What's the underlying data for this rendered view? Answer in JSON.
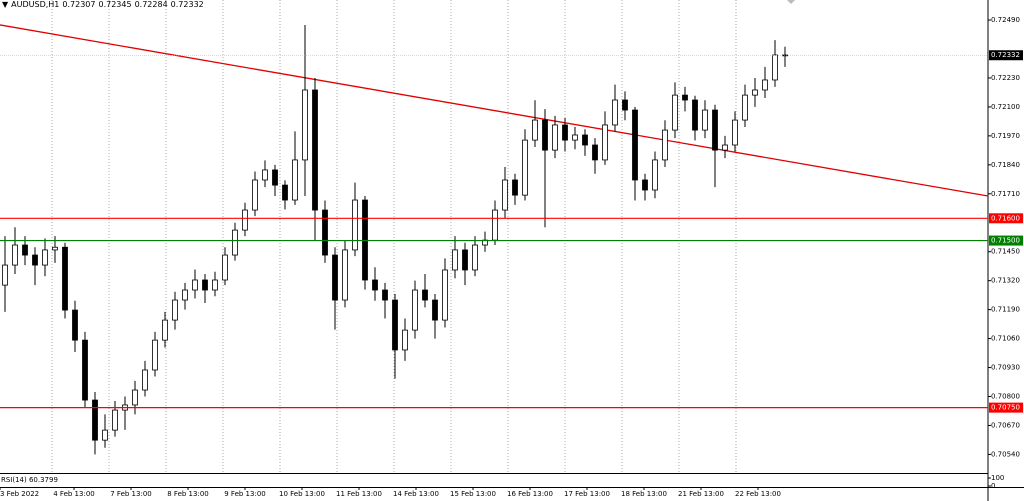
{
  "chart_data": {
    "type": "candlestick",
    "title": "AUDUSD,H1",
    "header_values": [
      0.72307,
      0.72345,
      0.72284,
      0.72332
    ],
    "up_color": "#ffffff",
    "down_color": "#000000",
    "ylim": [
      0.7047,
      0.7258
    ],
    "yticks": [
      {
        "value": 0.7249,
        "label": "0.72490"
      },
      {
        "value": 0.7223,
        "label": "0.72230"
      },
      {
        "value": 0.721,
        "label": "0.72100"
      },
      {
        "value": 0.7197,
        "label": "0.71970"
      },
      {
        "value": 0.7184,
        "label": "0.71840"
      },
      {
        "value": 0.7171,
        "label": "0.71710"
      },
      {
        "value": 0.7145,
        "label": "0.71450"
      },
      {
        "value": 0.7132,
        "label": "0.71320"
      },
      {
        "value": 0.7119,
        "label": "0.71190"
      },
      {
        "value": 0.7106,
        "label": "0.71060"
      },
      {
        "value": 0.7093,
        "label": "0.70930"
      },
      {
        "value": 0.708,
        "label": "0.70800"
      },
      {
        "value": 0.7067,
        "label": "0.70670"
      },
      {
        "value": 0.7054,
        "label": "0.70540"
      }
    ],
    "x_labels": [
      "3 Feb 2022",
      "4 Feb 13:00",
      "7 Feb 13:00",
      "8 Feb 13:00",
      "9 Feb 13:00",
      "10 Feb 13:00",
      "11 Feb 13:00",
      "14 Feb 13:00",
      "15 Feb 13:00",
      "16 Feb 13:00",
      "17 Feb 13:00",
      "18 Feb 13:00",
      "21 Feb 13:00",
      "22 Feb 13:00"
    ],
    "candles": [
      [
        0.713,
        0.7152,
        0.7118,
        0.7139
      ],
      [
        0.7139,
        0.7156,
        0.7135,
        0.7148
      ],
      [
        0.7148,
        0.7152,
        0.7139,
        0.71435
      ],
      [
        0.71435,
        0.7147,
        0.713,
        0.7139
      ],
      [
        0.7139,
        0.7151,
        0.7134,
        0.71458
      ],
      [
        0.71458,
        0.7152,
        0.714,
        0.7147
      ],
      [
        0.7147,
        0.7149,
        0.7115,
        0.71188
      ],
      [
        0.71188,
        0.7123,
        0.71,
        0.71053
      ],
      [
        0.71053,
        0.7109,
        0.7075,
        0.70784
      ],
      [
        0.70784,
        0.7082,
        0.7054,
        0.70604
      ],
      [
        0.70604,
        0.7072,
        0.7057,
        0.70649
      ],
      [
        0.70649,
        0.7078,
        0.7062,
        0.70739
      ],
      [
        0.70739,
        0.708,
        0.7065,
        0.70762
      ],
      [
        0.70762,
        0.7087,
        0.7072,
        0.70829
      ],
      [
        0.70829,
        0.7096,
        0.708,
        0.70919
      ],
      [
        0.70919,
        0.7109,
        0.7089,
        0.71053
      ],
      [
        0.71053,
        0.7118,
        0.7102,
        0.71143
      ],
      [
        0.71143,
        0.7127,
        0.711,
        0.71233
      ],
      [
        0.71233,
        0.7131,
        0.7119,
        0.71278
      ],
      [
        0.71278,
        0.7137,
        0.7124,
        0.71323
      ],
      [
        0.71323,
        0.7135,
        0.7122,
        0.71278
      ],
      [
        0.71278,
        0.7136,
        0.7125,
        0.71323
      ],
      [
        0.71323,
        0.7147,
        0.713,
        0.71435
      ],
      [
        0.71435,
        0.7158,
        0.7141,
        0.71547
      ],
      [
        0.71547,
        0.7167,
        0.7152,
        0.71637
      ],
      [
        0.71637,
        0.7181,
        0.7161,
        0.71772
      ],
      [
        0.71772,
        0.7186,
        0.7174,
        0.71817
      ],
      [
        0.71817,
        0.7184,
        0.717,
        0.71749
      ],
      [
        0.71749,
        0.7177,
        0.7164,
        0.71682
      ],
      [
        0.71682,
        0.7199,
        0.7166,
        0.71862
      ],
      [
        0.71862,
        0.72468,
        0.717,
        0.72176
      ],
      [
        0.72176,
        0.7223,
        0.715,
        0.71637
      ],
      [
        0.71637,
        0.7168,
        0.714,
        0.71435
      ],
      [
        0.71435,
        0.7147,
        0.711,
        0.71233
      ],
      [
        0.71233,
        0.715,
        0.712,
        0.71458
      ],
      [
        0.71458,
        0.7176,
        0.7143,
        0.71682
      ],
      [
        0.71682,
        0.717,
        0.7128,
        0.71323
      ],
      [
        0.71323,
        0.7138,
        0.7123,
        0.71278
      ],
      [
        0.71278,
        0.7131,
        0.7115,
        0.71233
      ],
      [
        0.71233,
        0.7126,
        0.7088,
        0.71009
      ],
      [
        0.71009,
        0.7115,
        0.7096,
        0.71098
      ],
      [
        0.71098,
        0.7132,
        0.7106,
        0.71278
      ],
      [
        0.71278,
        0.7135,
        0.712,
        0.71233
      ],
      [
        0.71233,
        0.7126,
        0.7106,
        0.71143
      ],
      [
        0.71143,
        0.7142,
        0.7111,
        0.71368
      ],
      [
        0.71368,
        0.7152,
        0.7133,
        0.71458
      ],
      [
        0.71458,
        0.7149,
        0.713,
        0.71368
      ],
      [
        0.71368,
        0.7152,
        0.7134,
        0.7148
      ],
      [
        0.7148,
        0.7154,
        0.7145,
        0.71502
      ],
      [
        0.71502,
        0.7168,
        0.7148,
        0.71637
      ],
      [
        0.71637,
        0.7183,
        0.716,
        0.71772
      ],
      [
        0.71772,
        0.718,
        0.7166,
        0.71704
      ],
      [
        0.71704,
        0.72,
        0.7168,
        0.71951
      ],
      [
        0.71951,
        0.7213,
        0.7192,
        0.72041
      ],
      [
        0.72041,
        0.7209,
        0.7156,
        0.71906
      ],
      [
        0.71906,
        0.7206,
        0.7187,
        0.72019
      ],
      [
        0.72019,
        0.7205,
        0.719,
        0.71951
      ],
      [
        0.71951,
        0.7201,
        0.7191,
        0.71974
      ],
      [
        0.71974,
        0.72,
        0.7188,
        0.71929
      ],
      [
        0.71929,
        0.7196,
        0.718,
        0.71862
      ],
      [
        0.71862,
        0.7208,
        0.7184,
        0.72019
      ],
      [
        0.72019,
        0.722,
        0.7199,
        0.72131
      ],
      [
        0.72131,
        0.7217,
        0.7204,
        0.72086
      ],
      [
        0.72086,
        0.721,
        0.7168,
        0.71772
      ],
      [
        0.71772,
        0.718,
        0.7168,
        0.71727
      ],
      [
        0.71727,
        0.719,
        0.7169,
        0.71862
      ],
      [
        0.71862,
        0.7204,
        0.7183,
        0.71996
      ],
      [
        0.71996,
        0.7221,
        0.7196,
        0.72153
      ],
      [
        0.72153,
        0.7219,
        0.7208,
        0.72131
      ],
      [
        0.72131,
        0.7215,
        0.7195,
        0.71996
      ],
      [
        0.71996,
        0.7213,
        0.7196,
        0.72086
      ],
      [
        0.72086,
        0.7211,
        0.7174,
        0.71906
      ],
      [
        0.71906,
        0.7197,
        0.7187,
        0.71929
      ],
      [
        0.71929,
        0.7208,
        0.719,
        0.72041
      ],
      [
        0.72041,
        0.722,
        0.7201,
        0.72153
      ],
      [
        0.72153,
        0.7223,
        0.721,
        0.72176
      ],
      [
        0.72176,
        0.7228,
        0.7214,
        0.72221
      ],
      [
        0.72221,
        0.724,
        0.7219,
        0.72333
      ],
      [
        0.72333,
        0.7237,
        0.7228,
        0.72332
      ]
    ],
    "levels": [
      {
        "value": 0.716,
        "label": "0.71600",
        "color": "#ff0000"
      },
      {
        "value": 0.715,
        "label": "0.71500",
        "color": "#008000"
      },
      {
        "value": 0.7075,
        "label": "0.70750",
        "color": "#ff0000"
      }
    ],
    "last_price": {
      "value": 0.72332,
      "label": "0.72332",
      "color": "#000000"
    },
    "trendline": {
      "start": 0.72468,
      "end": 0.717,
      "color": "#e00000"
    },
    "rsi": {
      "title": "RSI(14) 60.3799",
      "ylim": [
        0,
        100
      ],
      "yticks": [
        100,
        0
      ]
    }
  }
}
